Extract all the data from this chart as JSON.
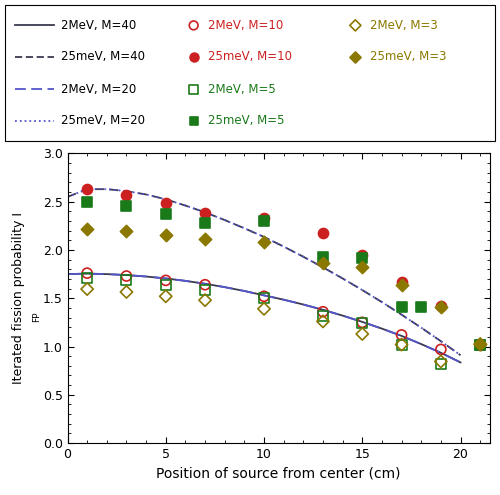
{
  "line_2MeV_M40_x": [
    0,
    1,
    2,
    3,
    4,
    5,
    6,
    7,
    8,
    9,
    10,
    11,
    12,
    13,
    14,
    15,
    16,
    17,
    18,
    19,
    20
  ],
  "line_2MeV_M40_y": [
    1.75,
    1.755,
    1.75,
    1.74,
    1.725,
    1.705,
    1.68,
    1.65,
    1.615,
    1.575,
    1.53,
    1.485,
    1.435,
    1.38,
    1.32,
    1.255,
    1.185,
    1.11,
    1.025,
    0.935,
    0.835
  ],
  "line_25meV_M40_x": [
    0,
    1,
    2,
    3,
    4,
    5,
    6,
    7,
    8,
    9,
    10,
    11,
    12,
    13,
    14,
    15,
    16,
    17,
    18,
    19,
    20
  ],
  "line_25meV_M40_y": [
    2.55,
    2.63,
    2.63,
    2.61,
    2.575,
    2.525,
    2.46,
    2.39,
    2.31,
    2.225,
    2.135,
    2.035,
    1.93,
    1.82,
    1.705,
    1.585,
    1.46,
    1.33,
    1.195,
    1.055,
    0.91
  ],
  "line_2MeV_M20_x": [
    0,
    1,
    2,
    3,
    4,
    5,
    6,
    7,
    8,
    9,
    10,
    11,
    12,
    13,
    14,
    15,
    16,
    17,
    18,
    19,
    20
  ],
  "line_2MeV_M20_y": [
    1.75,
    1.755,
    1.75,
    1.74,
    1.725,
    1.705,
    1.68,
    1.65,
    1.615,
    1.575,
    1.53,
    1.485,
    1.435,
    1.38,
    1.32,
    1.255,
    1.185,
    1.11,
    1.025,
    0.935,
    0.835
  ],
  "line_25meV_M20_x": [
    0,
    1,
    2,
    3,
    4,
    5,
    6,
    7,
    8,
    9,
    10,
    11,
    12,
    13,
    14,
    15,
    16,
    17,
    18,
    19,
    20
  ],
  "line_25meV_M20_y": [
    2.55,
    2.63,
    2.63,
    2.61,
    2.575,
    2.525,
    2.46,
    2.39,
    2.31,
    2.225,
    2.135,
    2.035,
    1.93,
    1.82,
    1.705,
    1.585,
    1.46,
    1.33,
    1.195,
    1.055,
    0.91
  ],
  "pts_2MeV_M10_x": [
    1,
    3,
    5,
    7,
    10,
    13,
    15,
    17,
    19,
    21
  ],
  "pts_2MeV_M10_y": [
    1.76,
    1.73,
    1.685,
    1.64,
    1.52,
    1.36,
    1.25,
    1.12,
    0.97,
    1.02
  ],
  "pts_25meV_M10_x": [
    1,
    3,
    5,
    7,
    10,
    13,
    15,
    17,
    19,
    21
  ],
  "pts_25meV_M10_y": [
    2.63,
    2.57,
    2.49,
    2.38,
    2.33,
    2.18,
    1.95,
    1.67,
    1.42,
    1.02
  ],
  "pts_2MeV_M5_x": [
    1,
    3,
    5,
    7,
    10,
    13,
    15,
    17,
    19,
    21
  ],
  "pts_2MeV_M5_y": [
    1.71,
    1.69,
    1.64,
    1.59,
    1.5,
    1.32,
    1.24,
    1.02,
    0.82,
    1.02
  ],
  "pts_25meV_M5_x": [
    1,
    3,
    5,
    7,
    10,
    13,
    15,
    17,
    18,
    21
  ],
  "pts_25meV_M5_y": [
    2.5,
    2.46,
    2.37,
    2.28,
    2.3,
    1.93,
    1.92,
    1.41,
    1.41,
    1.02
  ],
  "pts_2MeV_M3_x": [
    1,
    3,
    5,
    7,
    10,
    13,
    15,
    17,
    19,
    21
  ],
  "pts_2MeV_M3_y": [
    1.595,
    1.565,
    1.52,
    1.48,
    1.39,
    1.26,
    1.13,
    1.02,
    0.845,
    1.025
  ],
  "pts_25meV_M3_x": [
    1,
    3,
    5,
    7,
    10,
    13,
    15,
    17,
    19,
    21
  ],
  "pts_25meV_M3_y": [
    2.215,
    2.195,
    2.155,
    2.11,
    2.08,
    1.87,
    1.82,
    1.64,
    1.41,
    1.03
  ],
  "color_dark": "#3a3a50",
  "color_blue": "#5555cc",
  "color_red": "#cc2020",
  "color_green": "#1a7a1a",
  "color_olive": "#8B7800",
  "xlabel": "Position of source from center (cm)",
  "xlim": [
    0,
    21.5
  ],
  "ylim": [
    0,
    3.0
  ],
  "xticks": [
    0,
    5,
    10,
    15,
    20
  ],
  "yticks": [
    0,
    0.5,
    1.0,
    1.5,
    2.0,
    2.5,
    3.0
  ]
}
